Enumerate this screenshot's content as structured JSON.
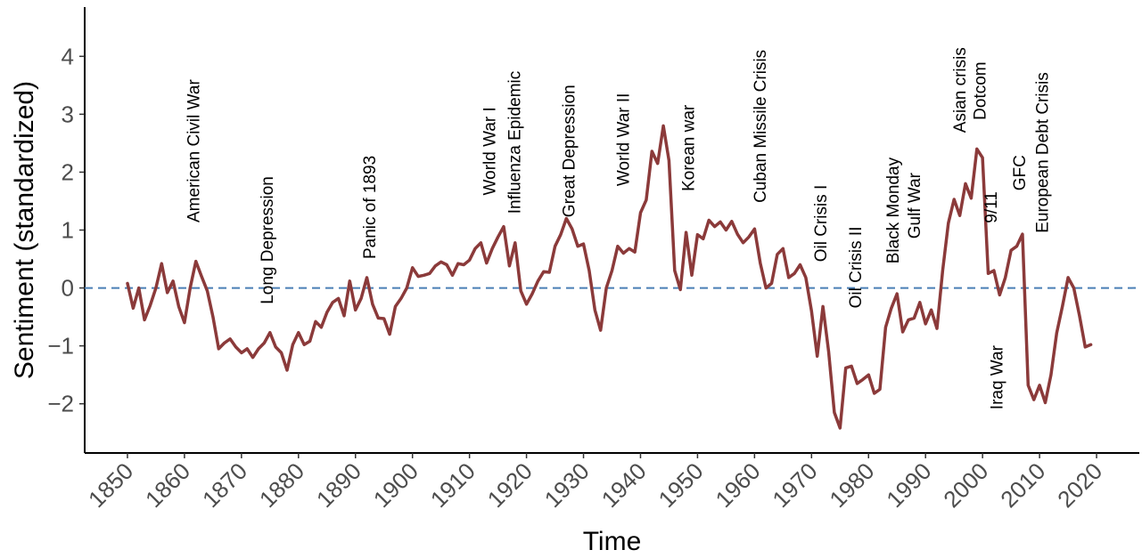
{
  "chart_data": {
    "type": "line",
    "title": "",
    "xlabel": "Time",
    "ylabel": "Sentiment (standardized)",
    "xlim": [
      1842.5,
      2027.5
    ],
    "ylim": [
      -2.85,
      4.85
    ],
    "x_ticks": [
      1850,
      1860,
      1870,
      1880,
      1890,
      1900,
      1910,
      1920,
      1930,
      1940,
      1950,
      1960,
      1970,
      1980,
      1990,
      2000,
      2010,
      2020
    ],
    "y_ticks": [
      -2,
      -1,
      0,
      1,
      2,
      3,
      4
    ],
    "grid": false,
    "reference_line": {
      "y": 0,
      "style": "dashed",
      "color": "#4a7fb5"
    },
    "colors": {
      "line": "#8b3a3a"
    },
    "series": [
      {
        "x": [
          1850,
          1851,
          1852,
          1853,
          1854,
          1855,
          1856,
          1857,
          1858,
          1859,
          1860,
          1861,
          1862,
          1863,
          1864,
          1865,
          1866,
          1867,
          1868,
          1869,
          1870,
          1871,
          1872,
          1873,
          1874,
          1875,
          1876,
          1877,
          1878,
          1879,
          1880,
          1881,
          1882,
          1883,
          1884,
          1885,
          1886,
          1887,
          1888,
          1889,
          1890,
          1891,
          1892,
          1893,
          1894,
          1895,
          1896,
          1897,
          1898,
          1899,
          1900,
          1901,
          1902,
          1903,
          1904,
          1905,
          1906,
          1907,
          1908,
          1909,
          1910,
          1911,
          1912,
          1913,
          1914,
          1915,
          1916,
          1917,
          1918,
          1919,
          1920,
          1921,
          1922,
          1923,
          1924,
          1925,
          1926,
          1927,
          1928,
          1929,
          1930,
          1931,
          1932,
          1933,
          1934,
          1935,
          1936,
          1937,
          1938,
          1939,
          1940,
          1941,
          1942,
          1943,
          1944,
          1945,
          1946,
          1947,
          1948,
          1949,
          1950,
          1951,
          1952,
          1953,
          1954,
          1955,
          1956,
          1957,
          1958,
          1959,
          1960,
          1961,
          1962,
          1963,
          1964,
          1965,
          1966,
          1967,
          1968,
          1969,
          1970,
          1971,
          1972,
          1973,
          1974,
          1975,
          1976,
          1977,
          1978,
          1979,
          1980,
          1981,
          1982,
          1983,
          1984,
          1985,
          1986,
          1987,
          1988,
          1989,
          1990,
          1991,
          1992,
          1993,
          1994,
          1995,
          1996,
          1997,
          1998,
          1999,
          2000,
          2001,
          2002,
          2003,
          2004,
          2005,
          2006,
          2007,
          2008,
          2009,
          2010,
          2011,
          2012,
          2013,
          2014,
          2015,
          2016,
          2017,
          2018,
          2019
        ],
        "values": [
          0.08,
          -0.35,
          0.0,
          -0.55,
          -0.3,
          0.0,
          0.42,
          -0.08,
          0.12,
          -0.32,
          -0.6,
          0.0,
          0.46,
          0.2,
          -0.05,
          -0.5,
          -1.05,
          -0.95,
          -0.88,
          -1.02,
          -1.12,
          -1.05,
          -1.2,
          -1.05,
          -0.95,
          -0.77,
          -1.02,
          -1.12,
          -1.42,
          -0.98,
          -0.77,
          -0.98,
          -0.92,
          -0.58,
          -0.68,
          -0.42,
          -0.25,
          -0.18,
          -0.48,
          0.12,
          -0.38,
          -0.18,
          0.18,
          -0.28,
          -0.52,
          -0.53,
          -0.8,
          -0.32,
          -0.18,
          0.0,
          0.35,
          0.2,
          0.22,
          0.25,
          0.38,
          0.45,
          0.4,
          0.22,
          0.42,
          0.4,
          0.48,
          0.68,
          0.78,
          0.43,
          0.68,
          0.88,
          1.06,
          0.38,
          0.78,
          -0.05,
          -0.28,
          -0.1,
          0.12,
          0.28,
          0.27,
          0.72,
          0.92,
          1.2,
          1.02,
          0.72,
          0.76,
          0.3,
          -0.38,
          -0.73,
          0.0,
          0.3,
          0.72,
          0.6,
          0.68,
          0.62,
          1.3,
          1.52,
          2.36,
          2.15,
          2.8,
          2.2,
          0.3,
          -0.03,
          0.96,
          0.22,
          0.92,
          0.85,
          1.17,
          1.06,
          1.14,
          1.0,
          1.15,
          0.93,
          0.78,
          0.88,
          1.02,
          0.43,
          0.0,
          0.08,
          0.58,
          0.68,
          0.18,
          0.25,
          0.4,
          0.18,
          -0.4,
          -1.18,
          -0.32,
          -1.1,
          -2.15,
          -2.42,
          -1.38,
          -1.35,
          -1.65,
          -1.58,
          -1.5,
          -1.82,
          -1.75,
          -0.68,
          -0.35,
          -0.1,
          -0.76,
          -0.55,
          -0.52,
          -0.25,
          -0.62,
          -0.38,
          -0.7,
          0.3,
          1.12,
          1.53,
          1.25,
          1.8,
          1.55,
          2.4,
          2.25,
          0.25,
          0.3,
          -0.12,
          0.18,
          0.65,
          0.72,
          0.93,
          -1.68,
          -1.93,
          -1.68,
          -1.98,
          -1.5,
          -0.78,
          -0.32,
          0.18,
          0.0,
          -0.48,
          -1.02,
          -0.98
        ]
      }
    ],
    "annotations": [
      {
        "text": "American Civil War",
        "x": 1862.6,
        "y": 1.13
      },
      {
        "text": "Long Depression",
        "x": 1875.5,
        "y": -0.28
      },
      {
        "text": "Panic of 1893",
        "x": 1893.5,
        "y": 0.5
      },
      {
        "text": "World War I",
        "x": 1914.5,
        "y": 1.6
      },
      {
        "text": "Influenza Epidemic",
        "x": 1918.9,
        "y": 1.28
      },
      {
        "text": "Great Depression",
        "x": 1928.4,
        "y": 1.22
      },
      {
        "text": "World War II",
        "x": 1938.0,
        "y": 1.76
      },
      {
        "text": "Korean war",
        "x": 1949.4,
        "y": 1.67
      },
      {
        "text": "Cuban Missile Crisis",
        "x": 1962.0,
        "y": 1.47
      },
      {
        "text": "Oil Crisis I",
        "x": 1972.6,
        "y": 0.45
      },
      {
        "text": "Oil Crisis II",
        "x": 1978.7,
        "y": -0.35
      },
      {
        "text": "Black Monday",
        "x": 1985.3,
        "y": 0.42
      },
      {
        "text": "Gulf War",
        "x": 1989.0,
        "y": 0.85
      },
      {
        "text": "Asian crisis",
        "x": 1997.0,
        "y": 2.68
      },
      {
        "text": "Dotcom",
        "x": 2000.5,
        "y": 2.9
      },
      {
        "text": "9/11",
        "x": 2002.5,
        "y": 1.12
      },
      {
        "text": "Iraq War",
        "x": 2003.5,
        "y": -2.1
      },
      {
        "text": "GFC",
        "x": 2007.5,
        "y": 1.68
      },
      {
        "text": "European Debt Crisis",
        "x": 2011.5,
        "y": 0.95
      }
    ]
  }
}
